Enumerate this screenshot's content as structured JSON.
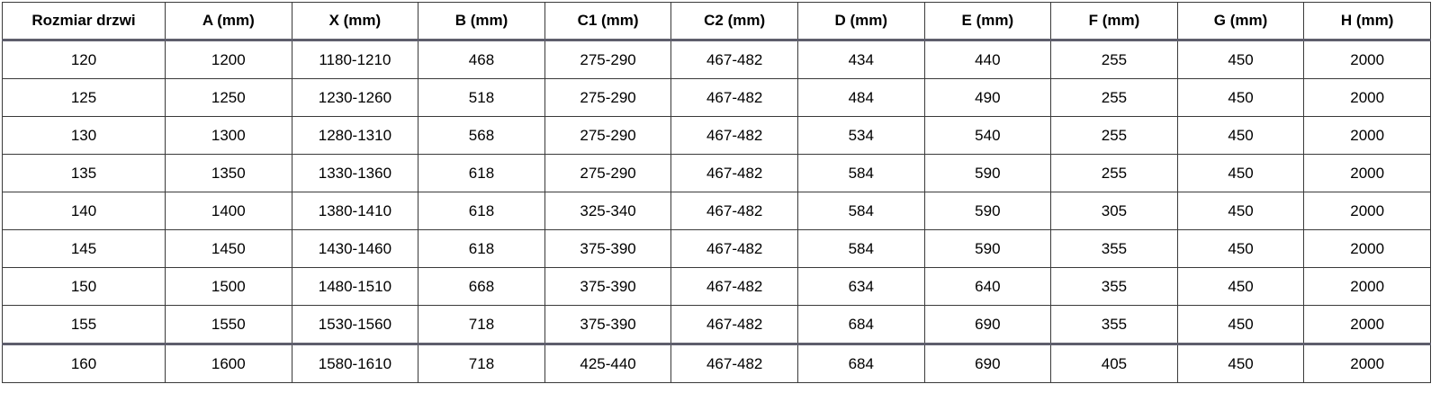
{
  "table": {
    "title": "door-dimensions-table",
    "headers": [
      "Rozmiar drzwi",
      "A (mm)",
      "X (mm)",
      "B (mm)",
      "C1 (mm)",
      "C2 (mm)",
      "D (mm)",
      "E (mm)",
      "F (mm)",
      "G (mm)",
      "H (mm)"
    ],
    "rows": [
      [
        "120",
        "1200",
        "1180-1210",
        "468",
        "275-290",
        "467-482",
        "434",
        "440",
        "255",
        "450",
        "2000"
      ],
      [
        "125",
        "1250",
        "1230-1260",
        "518",
        "275-290",
        "467-482",
        "484",
        "490",
        "255",
        "450",
        "2000"
      ],
      [
        "130",
        "1300",
        "1280-1310",
        "568",
        "275-290",
        "467-482",
        "534",
        "540",
        "255",
        "450",
        "2000"
      ],
      [
        "135",
        "1350",
        "1330-1360",
        "618",
        "275-290",
        "467-482",
        "584",
        "590",
        "255",
        "450",
        "2000"
      ],
      [
        "140",
        "1400",
        "1380-1410",
        "618",
        "325-340",
        "467-482",
        "584",
        "590",
        "305",
        "450",
        "2000"
      ],
      [
        "145",
        "1450",
        "1430-1460",
        "618",
        "375-390",
        "467-482",
        "584",
        "590",
        "355",
        "450",
        "2000"
      ],
      [
        "150",
        "1500",
        "1480-1510",
        "668",
        "375-390",
        "467-482",
        "634",
        "640",
        "355",
        "450",
        "2000"
      ],
      [
        "155",
        "1550",
        "1530-1560",
        "718",
        "375-390",
        "467-482",
        "684",
        "690",
        "355",
        "450",
        "2000"
      ],
      [
        "160",
        "1600",
        "1580-1610",
        "718",
        "425-440",
        "467-482",
        "684",
        "690",
        "405",
        "450",
        "2000"
      ]
    ]
  },
  "colors": {
    "background": "#ffffff",
    "text": "#000000",
    "grid_border": "#3a3a3a",
    "heavy_rule": "#5e5e6c"
  }
}
